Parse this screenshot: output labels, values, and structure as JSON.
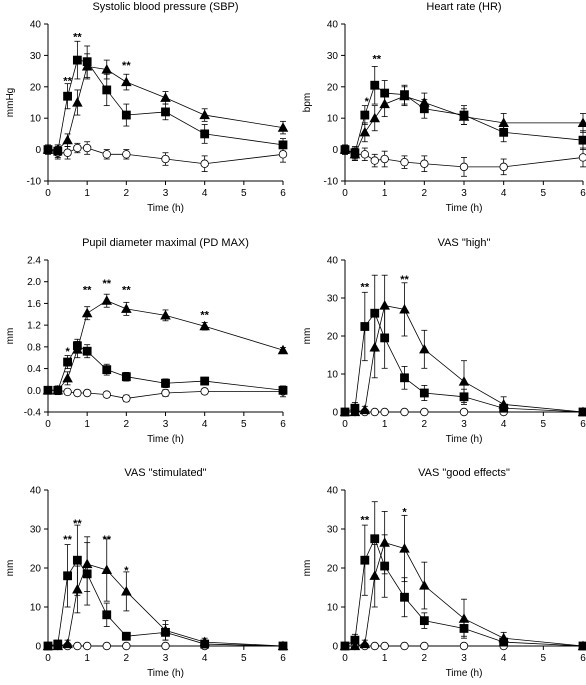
{
  "chart_data": [
    {
      "type": "line",
      "title": "Systolic blood pressure (SBP)",
      "xlabel": "Time (h)",
      "ylabel": "mmHg",
      "xlim": [
        0,
        6
      ],
      "ylim": [
        -10,
        40
      ],
      "xticks": [
        0,
        1,
        2,
        3,
        4,
        5,
        6
      ],
      "yticks": [
        -10,
        0,
        10,
        20,
        30,
        40
      ],
      "grid": false,
      "series": [
        {
          "marker": "filled-square",
          "x": [
            0,
            0.25,
            0.5,
            0.75,
            1,
            1.5,
            2,
            3,
            4,
            6
          ],
          "values": [
            0,
            -0.5,
            17,
            28.5,
            28,
            19,
            11,
            12,
            5,
            1.5
          ],
          "err": [
            1.5,
            2,
            4,
            6,
            5,
            5,
            3.5,
            2.5,
            3,
            2
          ]
        },
        {
          "marker": "filled-triangle",
          "x": [
            0,
            0.25,
            0.5,
            0.75,
            1,
            1.5,
            2,
            3,
            4,
            6
          ],
          "values": [
            0,
            0,
            3,
            15,
            26.5,
            25.5,
            21.5,
            16.5,
            11,
            7
          ],
          "err": [
            1,
            1.5,
            2,
            4,
            4,
            3,
            2.5,
            2,
            2,
            2
          ]
        },
        {
          "marker": "open-circle",
          "x": [
            0,
            0.25,
            0.5,
            0.75,
            1,
            1.5,
            2,
            3,
            4,
            6
          ],
          "values": [
            0,
            -1,
            -1,
            0.5,
            0.5,
            -1.5,
            -1.5,
            -3,
            -4.5,
            -1.5
          ],
          "err": [
            1,
            2,
            2,
            1.5,
            2,
            1.5,
            1.5,
            2,
            2.5,
            2.5
          ]
        }
      ],
      "annotations": [
        {
          "text": "**",
          "x": 0.5,
          "y": 22
        },
        {
          "text": "**",
          "x": 0.75,
          "y": 36
        },
        {
          "text": "**",
          "x": 2,
          "y": 27
        }
      ]
    },
    {
      "type": "line",
      "title": "Heart rate (HR)",
      "xlabel": "Time (h)",
      "ylabel": "bpm",
      "xlim": [
        0,
        6
      ],
      "ylim": [
        -10,
        40
      ],
      "xticks": [
        0,
        1,
        2,
        3,
        4,
        5,
        6
      ],
      "yticks": [
        -10,
        0,
        10,
        20,
        30,
        40
      ],
      "grid": false,
      "series": [
        {
          "marker": "filled-square",
          "x": [
            0,
            0.25,
            0.5,
            0.75,
            1,
            1.5,
            2,
            3,
            4,
            6
          ],
          "values": [
            0,
            -1,
            11,
            20.5,
            18,
            17.5,
            13,
            11,
            5.5,
            3
          ],
          "err": [
            1.5,
            2,
            3,
            6,
            4,
            3,
            3,
            3,
            3,
            3
          ]
        },
        {
          "marker": "filled-triangle",
          "x": [
            0,
            0.25,
            0.5,
            0.75,
            1,
            1.5,
            2,
            3,
            4,
            6
          ],
          "values": [
            0,
            -1.5,
            5.5,
            10,
            14.5,
            17,
            15,
            10.5,
            8.5,
            8.5
          ],
          "err": [
            1,
            2,
            3,
            4,
            4,
            3,
            3,
            2.5,
            3,
            3
          ]
        },
        {
          "marker": "open-circle",
          "x": [
            0,
            0.25,
            0.5,
            0.75,
            1,
            1.5,
            2,
            3,
            4,
            6
          ],
          "values": [
            0,
            -1.5,
            -1.5,
            -3.5,
            -3,
            -4,
            -4.5,
            -5.5,
            -5.5,
            -2.5
          ],
          "err": [
            1.5,
            2,
            2,
            2,
            2.5,
            2,
            2.5,
            3,
            2.5,
            3
          ]
        }
      ],
      "annotations": [
        {
          "text": "*",
          "x": 0.55,
          "y": 15.5
        },
        {
          "text": "**",
          "x": 0.8,
          "y": 29
        }
      ]
    },
    {
      "type": "line",
      "title": "Pupil diameter maximal (PD MAX)",
      "xlabel": "Time (h)",
      "ylabel": "mm",
      "xlim": [
        0,
        6
      ],
      "ylim": [
        -0.4,
        2.4
      ],
      "xticks": [
        0,
        1,
        2,
        3,
        4,
        5,
        6
      ],
      "yticks": [
        -0.4,
        0.0,
        0.4,
        0.8,
        1.2,
        1.6,
        2.0,
        2.4
      ],
      "ytick_labels": [
        "-0.4",
        "0.0",
        "0.4",
        "0.8",
        "1.2",
        "1.6",
        "2.0",
        "2.4"
      ],
      "grid": false,
      "series": [
        {
          "marker": "filled-square",
          "x": [
            0,
            0.25,
            0.5,
            0.75,
            1,
            1.5,
            2,
            3,
            4,
            6
          ],
          "values": [
            0,
            0,
            0.52,
            0.82,
            0.72,
            0.38,
            0.25,
            0.13,
            0.17,
            0
          ],
          "err": [
            0.05,
            0.08,
            0.12,
            0.12,
            0.12,
            0.1,
            0.08,
            0.08,
            0.07,
            0.07
          ]
        },
        {
          "marker": "filled-triangle",
          "x": [
            0,
            0.25,
            0.5,
            0.75,
            1,
            1.5,
            2,
            3,
            4,
            6
          ],
          "values": [
            0,
            0,
            0.22,
            0.75,
            1.42,
            1.65,
            1.5,
            1.38,
            1.18,
            0.74
          ],
          "err": [
            0.05,
            0.05,
            0.12,
            0.15,
            0.12,
            0.12,
            0.12,
            0.1,
            0.07,
            0.05
          ]
        },
        {
          "marker": "open-circle",
          "x": [
            0,
            0.25,
            0.5,
            0.75,
            1,
            1.5,
            2,
            3,
            4,
            6
          ],
          "values": [
            0,
            0,
            -0.03,
            -0.05,
            -0.05,
            -0.08,
            -0.15,
            -0.05,
            -0.02,
            -0.02
          ],
          "err": [
            0.04,
            0.05,
            0.05,
            0.05,
            0.05,
            0.05,
            0.06,
            0.06,
            0.05,
            0.1
          ]
        }
      ],
      "annotations": [
        {
          "text": "*",
          "x": 0.5,
          "y": 0.72
        },
        {
          "text": "**",
          "x": 1,
          "y": 1.86
        },
        {
          "text": "**",
          "x": 1.5,
          "y": 1.98
        },
        {
          "text": "**",
          "x": 2,
          "y": 1.86
        },
        {
          "text": "**",
          "x": 4,
          "y": 1.4
        }
      ]
    },
    {
      "type": "line",
      "title": "VAS \"high\"",
      "xlabel": "Time (h)",
      "ylabel": "mm",
      "xlim": [
        0,
        6
      ],
      "ylim": [
        0,
        40
      ],
      "xticks": [
        0,
        1,
        2,
        3,
        4,
        5,
        6
      ],
      "yticks": [
        0,
        10,
        20,
        30,
        40
      ],
      "grid": false,
      "series": [
        {
          "marker": "filled-square",
          "x": [
            0,
            0.25,
            0.5,
            0.75,
            1,
            1.5,
            2,
            3,
            4,
            6
          ],
          "values": [
            0,
            1,
            22.5,
            26,
            19.5,
            9,
            5,
            4,
            1,
            0
          ],
          "err": [
            0.5,
            1.5,
            9,
            10,
            8,
            3,
            2,
            2,
            1,
            0.5
          ]
        },
        {
          "marker": "filled-triangle",
          "x": [
            0,
            0.25,
            0.5,
            0.75,
            1,
            1.5,
            2,
            3,
            4,
            6
          ],
          "values": [
            0,
            0,
            0.5,
            17,
            28,
            27,
            16.5,
            8,
            2,
            0
          ],
          "err": [
            0.3,
            0.5,
            1,
            8,
            8,
            7,
            5,
            5.5,
            2,
            0.5
          ]
        },
        {
          "marker": "open-circle",
          "x": [
            0,
            0.25,
            0.5,
            0.75,
            1,
            1.5,
            2,
            3,
            4,
            6
          ],
          "values": [
            0,
            0,
            0,
            0,
            0,
            0,
            0,
            0,
            0,
            0
          ],
          "err": [
            0,
            0,
            0,
            0,
            0,
            0,
            0,
            0,
            0,
            0
          ]
        }
      ],
      "annotations": [
        {
          "text": "**",
          "x": 0.5,
          "y": 33
        },
        {
          "text": "**",
          "x": 1.5,
          "y": 35
        }
      ]
    },
    {
      "type": "line",
      "title": "VAS \"stimulated\"",
      "xlabel": "Time (h)",
      "ylabel": "mm",
      "xlim": [
        0,
        6
      ],
      "ylim": [
        0,
        40
      ],
      "xticks": [
        0,
        1,
        2,
        3,
        4,
        5,
        6
      ],
      "yticks": [
        0,
        10,
        20,
        30,
        40
      ],
      "grid": false,
      "series": [
        {
          "marker": "filled-square",
          "x": [
            0,
            0.25,
            0.5,
            0.75,
            1,
            1.5,
            2,
            3,
            4,
            6
          ],
          "values": [
            0,
            0.5,
            18,
            22,
            18.5,
            8,
            2.5,
            3.5,
            0.5,
            0
          ],
          "err": [
            0.3,
            1,
            8,
            9,
            8,
            3,
            1,
            2,
            1,
            0.5
          ]
        },
        {
          "marker": "filled-triangle",
          "x": [
            0,
            0.25,
            0.5,
            0.75,
            1,
            1.5,
            2,
            3,
            4,
            6
          ],
          "values": [
            0,
            0,
            0.5,
            14.5,
            21,
            19.5,
            14,
            4,
            1,
            0
          ],
          "err": [
            0.3,
            0.3,
            1,
            6,
            7,
            8,
            5,
            2.5,
            1,
            0.5
          ]
        },
        {
          "marker": "open-circle",
          "x": [
            0,
            0.25,
            0.5,
            0.75,
            1,
            1.5,
            2,
            3,
            4,
            6
          ],
          "values": [
            0,
            0,
            0,
            0,
            0,
            0,
            0,
            0,
            0,
            0
          ],
          "err": [
            0,
            0,
            0,
            0,
            0,
            0,
            0,
            0,
            0,
            0
          ]
        }
      ],
      "annotations": [
        {
          "text": "**",
          "x": 0.5,
          "y": 27.5
        },
        {
          "text": "**",
          "x": 0.75,
          "y": 31.5
        },
        {
          "text": "**",
          "x": 1.5,
          "y": 27.5
        },
        {
          "text": "*",
          "x": 2,
          "y": 19.5
        }
      ]
    },
    {
      "type": "line",
      "title": "VAS \"good effects\"",
      "xlabel": "Time (h)",
      "ylabel": "mm",
      "xlim": [
        0,
        6
      ],
      "ylim": [
        0,
        40
      ],
      "xticks": [
        0,
        1,
        2,
        3,
        4,
        5,
        6
      ],
      "yticks": [
        0,
        10,
        20,
        30,
        40
      ],
      "grid": false,
      "series": [
        {
          "marker": "filled-square",
          "x": [
            0,
            0.25,
            0.5,
            0.75,
            1,
            1.5,
            2,
            3,
            4,
            6
          ],
          "values": [
            0,
            1.5,
            22,
            27.5,
            20.5,
            12.5,
            6.5,
            4.5,
            1,
            0
          ],
          "err": [
            0.3,
            1.5,
            9,
            9.5,
            8,
            5,
            2,
            2,
            1,
            0.5
          ]
        },
        {
          "marker": "filled-triangle",
          "x": [
            0,
            0.25,
            0.5,
            0.75,
            1,
            1.5,
            2,
            3,
            4,
            6
          ],
          "values": [
            0,
            0,
            0.5,
            18,
            26.5,
            25,
            15.5,
            7,
            2,
            0
          ],
          "err": [
            0.3,
            0.3,
            1,
            8,
            8,
            8.5,
            6,
            5,
            1.5,
            0.5
          ]
        },
        {
          "marker": "open-circle",
          "x": [
            0,
            0.25,
            0.5,
            0.75,
            1,
            1.5,
            2,
            3,
            4,
            6
          ],
          "values": [
            0,
            0,
            0,
            0,
            0,
            0,
            0,
            0,
            0,
            0
          ],
          "err": [
            0,
            0,
            0,
            0,
            0,
            0,
            0,
            0,
            0,
            0
          ]
        }
      ],
      "annotations": [
        {
          "text": "**",
          "x": 0.5,
          "y": 32.5
        },
        {
          "text": "*",
          "x": 1.5,
          "y": 34.5
        }
      ]
    }
  ]
}
